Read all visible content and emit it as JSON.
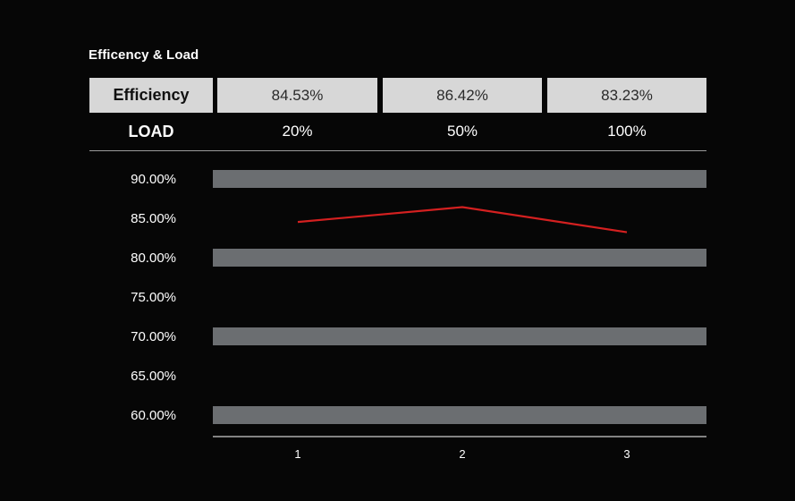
{
  "title": "Efficency & Load",
  "table": {
    "efficiency_label": "Efficiency",
    "load_label": "LOAD",
    "efficiency": [
      "84.53%",
      "86.42%",
      "83.23%"
    ],
    "load": [
      "20%",
      "50%",
      "100%"
    ]
  },
  "chart_data": {
    "type": "line",
    "categories": [
      "1",
      "2",
      "3"
    ],
    "series": [
      {
        "values": [
          84.53,
          86.42,
          83.23
        ],
        "color": "#d42020"
      }
    ],
    "yticks": [
      "60.00%",
      "65.00%",
      "70.00%",
      "75.00%",
      "80.00%",
      "85.00%",
      "90.00%"
    ],
    "ylim": [
      60,
      90
    ],
    "grid": true,
    "band_color": "#6b6e71",
    "xlabel": "",
    "ylabel": ""
  }
}
